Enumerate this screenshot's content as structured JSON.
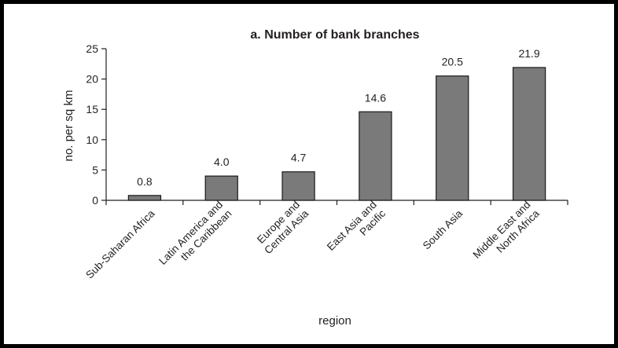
{
  "chart_data": {
    "type": "bar",
    "title": "a. Number of bank branches",
    "xlabel": "region",
    "ylabel": "no. per sq km",
    "ylim": [
      0,
      25
    ],
    "yticks": [
      0,
      5,
      10,
      15,
      20,
      25
    ],
    "grid": false,
    "categories": [
      [
        "Sub-Saharan Africa"
      ],
      [
        "Latin America and",
        "the Caribbean"
      ],
      [
        "Europe and",
        "Central Asia"
      ],
      [
        "East Asia and",
        "Pacific"
      ],
      [
        "South Asia"
      ],
      [
        "Middle East and",
        "North Africa"
      ]
    ],
    "values": [
      0.8,
      4.0,
      4.7,
      14.6,
      20.5,
      21.9
    ],
    "value_labels": [
      "0.8",
      "4.0",
      "4.7",
      "14.6",
      "20.5",
      "21.9"
    ],
    "bar_color": "#7a7a7a",
    "bar_edge_color": "#1a1a1a"
  }
}
